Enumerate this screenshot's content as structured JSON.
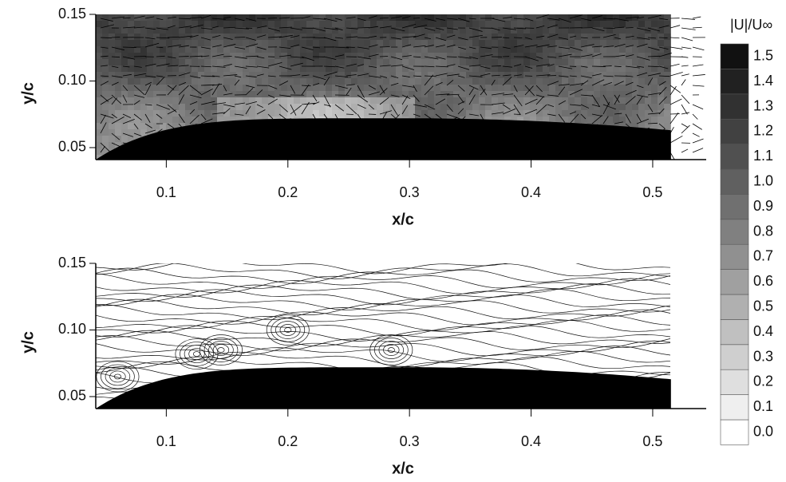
{
  "chart_data": [
    {
      "type": "contour-vector",
      "xlabel": "x/c",
      "ylabel": "y/c",
      "xlim": [
        0.042,
        0.544
      ],
      "ylim": [
        0.041,
        0.15
      ],
      "xticks": [
        0.1,
        0.2,
        0.3,
        0.4,
        0.5
      ],
      "yticks": [
        0.05,
        {
          "value": 0.1,
          "label": "0.10"
        },
        0.15
      ]
    },
    {
      "type": "streamline",
      "xlabel": "x/c",
      "ylabel": "y/c",
      "xlim": [
        0.042,
        0.544
      ],
      "ylim": [
        0.041,
        0.15
      ],
      "xticks": [
        0.1,
        0.2,
        0.3,
        0.4,
        0.5
      ],
      "yticks": [
        0.05,
        {
          "value": 0.1,
          "label": "0.10"
        },
        0.15
      ]
    }
  ],
  "colorbar": {
    "title": "|U|/U∞",
    "levels": [
      {
        "value": 0,
        "label": "0.0"
      },
      0.1,
      0.2,
      0.3,
      0.4,
      0.5,
      0.6,
      0.7,
      0.8,
      0.9,
      {
        "value": 1,
        "label": "1.0"
      },
      1.1,
      1.2,
      1.3,
      1.4,
      1.5
    ]
  }
}
